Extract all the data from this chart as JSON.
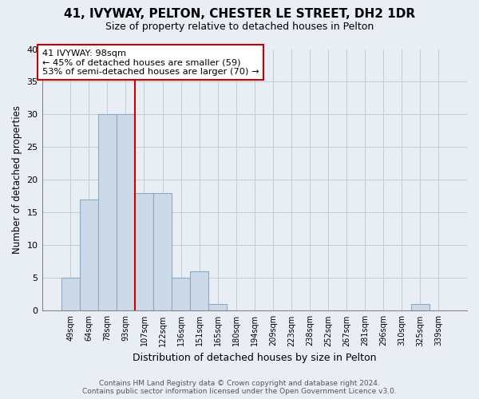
{
  "title": "41, IVYWAY, PELTON, CHESTER LE STREET, DH2 1DR",
  "subtitle": "Size of property relative to detached houses in Pelton",
  "xlabel": "Distribution of detached houses by size in Pelton",
  "ylabel": "Number of detached properties",
  "bin_labels": [
    "49sqm",
    "64sqm",
    "78sqm",
    "93sqm",
    "107sqm",
    "122sqm",
    "136sqm",
    "151sqm",
    "165sqm",
    "180sqm",
    "194sqm",
    "209sqm",
    "223sqm",
    "238sqm",
    "252sqm",
    "267sqm",
    "281sqm",
    "296sqm",
    "310sqm",
    "325sqm",
    "339sqm"
  ],
  "bar_heights": [
    5,
    17,
    30,
    30,
    18,
    18,
    5,
    6,
    1,
    0,
    0,
    0,
    0,
    0,
    0,
    0,
    0,
    0,
    0,
    1,
    0
  ],
  "bar_color": "#ccd9e8",
  "bar_edge_color": "#8aaac8",
  "ylim": [
    0,
    40
  ],
  "yticks": [
    0,
    5,
    10,
    15,
    20,
    25,
    30,
    35,
    40
  ],
  "vline_color": "#cc0000",
  "annotation_text": "41 IVYWAY: 98sqm\n← 45% of detached houses are smaller (59)\n53% of semi-detached houses are larger (70) →",
  "footer_text": "Contains HM Land Registry data © Crown copyright and database right 2024.\nContains public sector information licensed under the Open Government Licence v3.0.",
  "background_color": "#e8eef4",
  "plot_background": "#e8eef4",
  "grid_color": "#c0ccd8"
}
